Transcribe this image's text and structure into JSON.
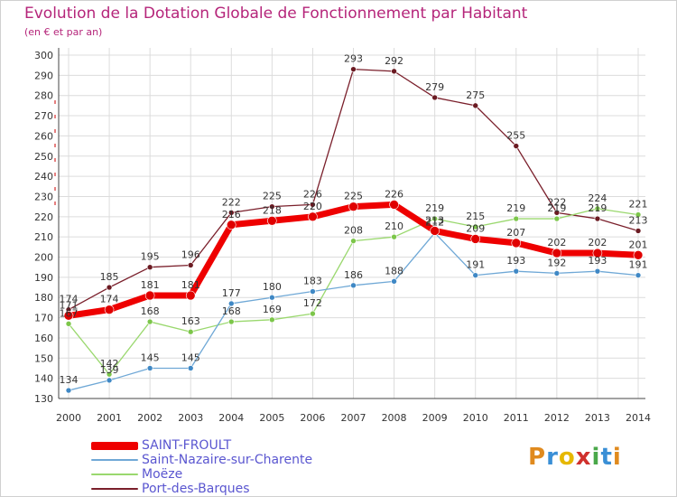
{
  "header": {
    "title": "Evolution de la Dotation Globale de Fonctionnement par Habitant",
    "subtitle": "(en € et par an)"
  },
  "logo": {
    "text": "Proxiti",
    "colors": [
      "#e08a1e",
      "#3a8fd6",
      "#e6b800",
      "#d0312d",
      "#4aa84a",
      "#3a8fd6",
      "#e08a1e"
    ]
  },
  "chart_data": {
    "type": "line",
    "title": "Evolution de la Dotation Globale de Fonctionnement par Habitant",
    "xlabel": "",
    "ylabel": "(en € et par an)",
    "ylim": [
      130,
      300
    ],
    "yticks": [
      130,
      140,
      150,
      160,
      170,
      180,
      190,
      200,
      210,
      220,
      230,
      240,
      250,
      260,
      270,
      280,
      290,
      300
    ],
    "grid": true,
    "legend_position": "bottom",
    "categories": [
      "2000",
      "2001",
      "2002",
      "2003",
      "2004",
      "2005",
      "2006",
      "2007",
      "2008",
      "2009",
      "2010",
      "2011",
      "2012",
      "2013",
      "2014"
    ],
    "series": [
      {
        "name": "Port-des-Barques",
        "color": "#7a1f2b",
        "marker": "#6b1a22",
        "width": 1.3,
        "values": [
          174,
          185,
          195,
          196,
          222,
          225,
          226,
          293,
          292,
          279,
          275,
          255,
          222,
          219,
          213
        ]
      },
      {
        "name": "Moëze",
        "color": "#9ad86e",
        "marker": "#7cc64a",
        "width": 1.3,
        "values": [
          167,
          142,
          168,
          163,
          168,
          169,
          172,
          208,
          210,
          219,
          215,
          219,
          219,
          224,
          221
        ]
      },
      {
        "name": "Saint-Nazaire-sur-Charente",
        "color": "#6fa8d6",
        "marker": "#3f88c5",
        "width": 1.3,
        "values": [
          134,
          139,
          145,
          145,
          177,
          180,
          183,
          186,
          188,
          212,
          191,
          193,
          192,
          193,
          191
        ]
      },
      {
        "name": "SAINT-FROULT",
        "color": "#ee0000",
        "marker": "#e00000",
        "width": 7,
        "values": [
          171,
          174,
          181,
          181,
          216,
          218,
          220,
          225,
          226,
          213,
          209,
          207,
          202,
          202,
          201
        ]
      }
    ],
    "data_labels": [
      {
        "series": "SAINT-FROULT",
        "index": 0,
        "text": "171"
      },
      {
        "series": "SAINT-FROULT",
        "index": 1,
        "text": "174"
      },
      {
        "series": "SAINT-FROULT",
        "index": 2,
        "text": "181"
      },
      {
        "series": "SAINT-FROULT",
        "index": 3,
        "text": "181"
      },
      {
        "series": "SAINT-FROULT",
        "index": 4,
        "text": "216"
      },
      {
        "series": "SAINT-FROULT",
        "index": 5,
        "text": "218"
      },
      {
        "series": "SAINT-FROULT",
        "index": 6,
        "text": "220"
      },
      {
        "series": "SAINT-FROULT",
        "index": 7,
        "text": "225"
      },
      {
        "series": "SAINT-FROULT",
        "index": 8,
        "text": "226"
      },
      {
        "series": "SAINT-FROULT",
        "index": 9,
        "text": "213"
      },
      {
        "series": "SAINT-FROULT",
        "index": 10,
        "text": "209"
      },
      {
        "series": "SAINT-FROULT",
        "index": 11,
        "text": "207"
      },
      {
        "series": "SAINT-FROULT",
        "index": 12,
        "text": "202"
      },
      {
        "series": "SAINT-FROULT",
        "index": 13,
        "text": "202"
      },
      {
        "series": "SAINT-FROULT",
        "index": 14,
        "text": "201"
      },
      {
        "series": "Saint-Nazaire-sur-Charente",
        "index": 0,
        "text": "134"
      },
      {
        "series": "Saint-Nazaire-sur-Charente",
        "index": 1,
        "text": "139"
      },
      {
        "series": "Saint-Nazaire-sur-Charente",
        "index": 2,
        "text": "145"
      },
      {
        "series": "Saint-Nazaire-sur-Charente",
        "index": 3,
        "text": "145"
      },
      {
        "series": "Saint-Nazaire-sur-Charente",
        "index": 4,
        "text": "177"
      },
      {
        "series": "Saint-Nazaire-sur-Charente",
        "index": 5,
        "text": "180"
      },
      {
        "series": "Saint-Nazaire-sur-Charente",
        "index": 6,
        "text": "183"
      },
      {
        "series": "Saint-Nazaire-sur-Charente",
        "index": 7,
        "text": "186"
      },
      {
        "series": "Saint-Nazaire-sur-Charente",
        "index": 8,
        "text": "188"
      },
      {
        "series": "Saint-Nazaire-sur-Charente",
        "index": 9,
        "text": "212"
      },
      {
        "series": "Saint-Nazaire-sur-Charente",
        "index": 10,
        "text": "191"
      },
      {
        "series": "Saint-Nazaire-sur-Charente",
        "index": 11,
        "text": "193"
      },
      {
        "series": "Saint-Nazaire-sur-Charente",
        "index": 12,
        "text": "192"
      },
      {
        "series": "Saint-Nazaire-sur-Charente",
        "index": 13,
        "text": "193"
      },
      {
        "series": "Saint-Nazaire-sur-Charente",
        "index": 14,
        "text": "191"
      },
      {
        "series": "Moëze",
        "index": 0,
        "text": "167"
      },
      {
        "series": "Moëze",
        "index": 1,
        "text": "142"
      },
      {
        "series": "Moëze",
        "index": 2,
        "text": "168"
      },
      {
        "series": "Moëze",
        "index": 3,
        "text": "163"
      },
      {
        "series": "Moëze",
        "index": 4,
        "text": "168"
      },
      {
        "series": "Moëze",
        "index": 5,
        "text": "169"
      },
      {
        "series": "Moëze",
        "index": 6,
        "text": "172"
      },
      {
        "series": "Moëze",
        "index": 7,
        "text": "208"
      },
      {
        "series": "Moëze",
        "index": 8,
        "text": "210"
      },
      {
        "series": "Moëze",
        "index": 9,
        "text": "219"
      },
      {
        "series": "Moëze",
        "index": 10,
        "text": "215"
      },
      {
        "series": "Moëze",
        "index": 11,
        "text": "219"
      },
      {
        "series": "Moëze",
        "index": 12,
        "text": "219"
      },
      {
        "series": "Moëze",
        "index": 13,
        "text": "224"
      },
      {
        "series": "Moëze",
        "index": 14,
        "text": "221"
      },
      {
        "series": "Port-des-Barques",
        "index": 0,
        "text": "174"
      },
      {
        "series": "Port-des-Barques",
        "index": 1,
        "text": "185"
      },
      {
        "series": "Port-des-Barques",
        "index": 2,
        "text": "195"
      },
      {
        "series": "Port-des-Barques",
        "index": 3,
        "text": "196"
      },
      {
        "series": "Port-des-Barques",
        "index": 4,
        "text": "222"
      },
      {
        "series": "Port-des-Barques",
        "index": 5,
        "text": "225"
      },
      {
        "series": "Port-des-Barques",
        "index": 6,
        "text": "226"
      },
      {
        "series": "Port-des-Barques",
        "index": 7,
        "text": "293"
      },
      {
        "series": "Port-des-Barques",
        "index": 8,
        "text": "292"
      },
      {
        "series": "Port-des-Barques",
        "index": 9,
        "text": "279"
      },
      {
        "series": "Port-des-Barques",
        "index": 10,
        "text": "275"
      },
      {
        "series": "Port-des-Barques",
        "index": 11,
        "text": "255"
      },
      {
        "series": "Port-des-Barques",
        "index": 12,
        "text": "222"
      },
      {
        "series": "Port-des-Barques",
        "index": 13,
        "text": "219"
      },
      {
        "series": "Port-des-Barques",
        "index": 14,
        "text": "213"
      }
    ]
  },
  "legend": {
    "items": [
      {
        "label": "SAINT-FROULT",
        "color": "#ee0000"
      },
      {
        "label": "Saint-Nazaire-sur-Charente",
        "color": "#6fa8d6"
      },
      {
        "label": "Moëze",
        "color": "#9ad86e"
      },
      {
        "label": "Port-des-Barques",
        "color": "#7a1f2b"
      }
    ]
  }
}
